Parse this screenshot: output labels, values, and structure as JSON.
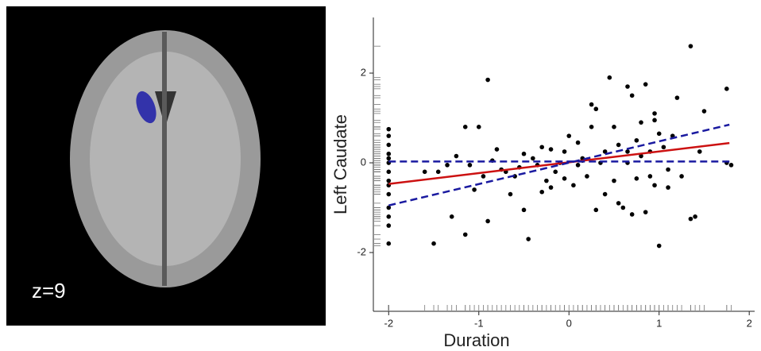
{
  "panel_label": "z=9",
  "chart_data": {
    "type": "scatter",
    "xlabel": "Duration",
    "ylabel": "Left Caudate",
    "xlim": [
      -2.17,
      2.06
    ],
    "ylim": [
      -3.31,
      3.24
    ],
    "xticks": [
      -2,
      -1,
      0,
      1,
      2
    ],
    "yticks": [
      -2,
      0,
      2
    ],
    "points": {
      "color": "#000000",
      "x": [
        -2,
        -2,
        -2,
        -2,
        -2,
        -2,
        -2,
        -2,
        -2,
        -2,
        -2,
        -2,
        -2,
        -2,
        -1.6,
        -1.5,
        -1.45,
        -1.35,
        -1.3,
        -1.25,
        -1.15,
        -1.15,
        -1.1,
        -1.05,
        -1.0,
        -0.95,
        -0.9,
        -0.9,
        -0.85,
        -0.8,
        -0.75,
        -0.7,
        -0.65,
        -0.6,
        -0.55,
        -0.5,
        -0.5,
        -0.45,
        -0.4,
        -0.35,
        -0.3,
        -0.3,
        -0.25,
        -0.2,
        -0.15,
        -0.1,
        -0.05,
        -0.05,
        0.0,
        0.05,
        0.1,
        0.1,
        0.15,
        0.2,
        0.25,
        0.25,
        0.3,
        0.3,
        0.35,
        0.4,
        0.4,
        0.45,
        0.5,
        0.5,
        0.55,
        0.55,
        0.6,
        0.65,
        0.65,
        0.65,
        0.7,
        0.7,
        0.75,
        0.75,
        0.8,
        0.8,
        0.85,
        0.85,
        0.9,
        0.9,
        0.95,
        0.95,
        1.0,
        1.0,
        1.05,
        1.1,
        1.1,
        1.15,
        1.2,
        1.25,
        1.35,
        1.35,
        1.4,
        1.45,
        1.5,
        1.75,
        1.75,
        1.8,
        0.95,
        -0.2,
        0.15
      ],
      "y": [
        0.75,
        0.6,
        0.4,
        0.2,
        0.1,
        0,
        -0.2,
        -0.4,
        -0.5,
        -0.7,
        -1.0,
        -1.2,
        -1.4,
        -1.8,
        -0.2,
        -1.8,
        -0.2,
        -0.05,
        -1.2,
        0.15,
        0.8,
        -1.6,
        -0.05,
        -0.6,
        0.8,
        -0.3,
        1.85,
        -1.3,
        0.05,
        0.3,
        -0.15,
        -0.2,
        -0.7,
        -0.3,
        -0.1,
        -1.05,
        0.2,
        -1.7,
        0.1,
        -0.05,
        0.35,
        -0.65,
        -0.4,
        0.3,
        -0.2,
        0.0,
        0.25,
        -0.35,
        0.6,
        -0.5,
        0.45,
        -0.05,
        0.05,
        -0.3,
        0.8,
        1.3,
        1.2,
        -1.05,
        0.0,
        0.25,
        -0.7,
        1.9,
        0.8,
        -0.4,
        0.4,
        -0.9,
        -1.0,
        0.0,
        0.25,
        1.7,
        -1.15,
        1.5,
        0.5,
        -0.35,
        0.9,
        0.15,
        1.75,
        -1.1,
        -0.3,
        0.25,
        1.1,
        -0.5,
        -1.85,
        0.65,
        0.35,
        -0.55,
        -0.15,
        0.6,
        1.45,
        -0.3,
        2.6,
        -1.25,
        -1.2,
        0.25,
        1.15,
        1.65,
        0.0,
        -0.05,
        0.95,
        -0.55,
        0.1
      ]
    },
    "lines": [
      {
        "color": "#cc1111",
        "dashed": false,
        "x": [
          -2,
          1.78
        ],
        "y": [
          -0.47,
          0.44
        ]
      },
      {
        "color": "#1a1aa0",
        "dashed": true,
        "x": [
          -2,
          1.78
        ],
        "y": [
          -0.95,
          0.85
        ]
      },
      {
        "color": "#1a1aa0",
        "dashed": true,
        "x": [
          -2,
          1.78
        ],
        "y": [
          0.03,
          0.03
        ]
      }
    ]
  }
}
